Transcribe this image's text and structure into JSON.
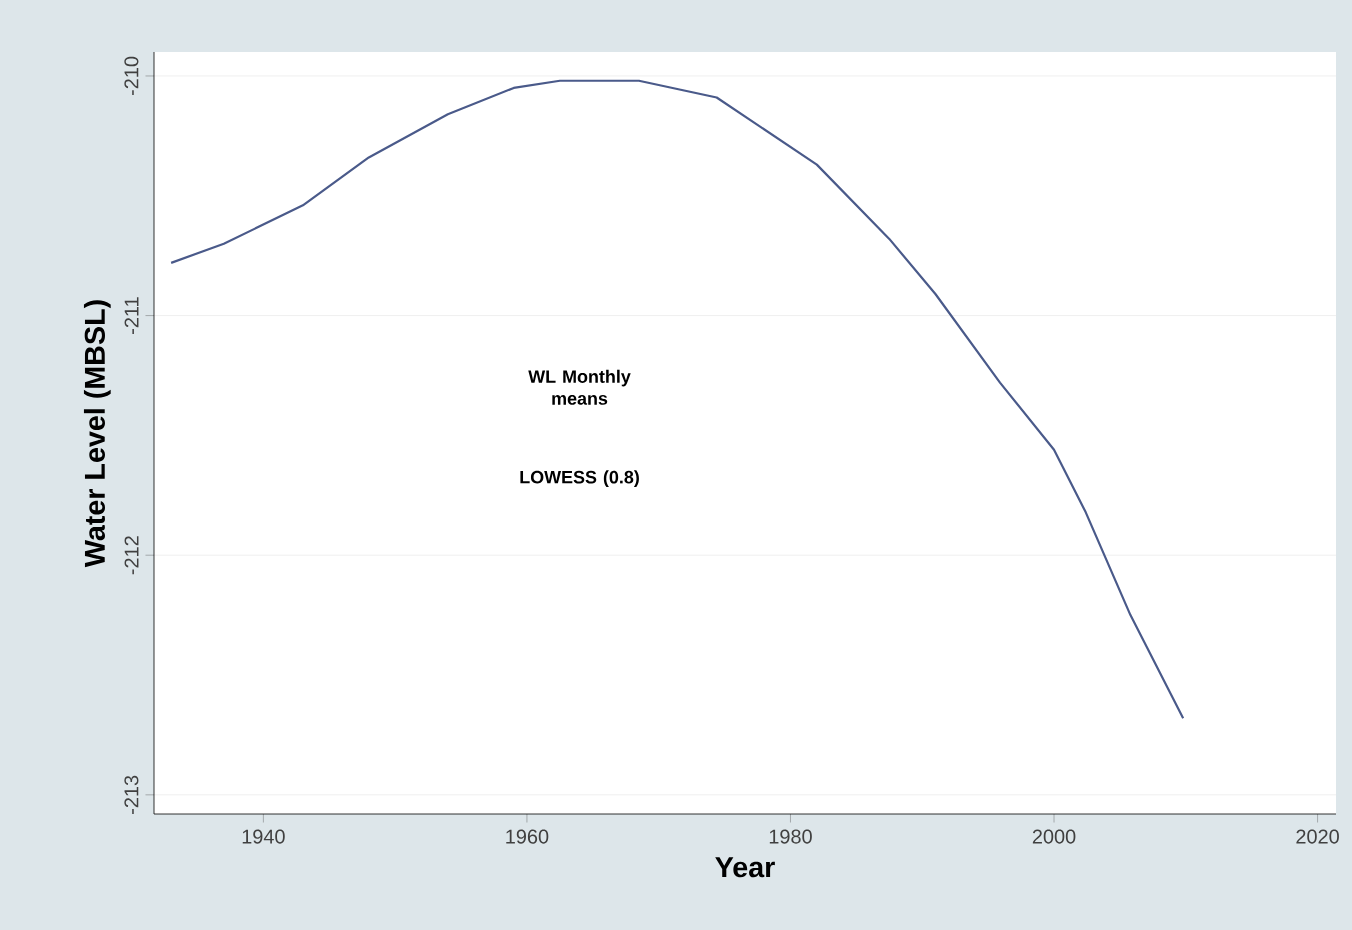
{
  "chart_data": {
    "type": "line",
    "xlabel": "Year",
    "ylabel": "Water Level (MBSL)",
    "x": [
      1933,
      1937,
      1943,
      1948,
      1954,
      1959,
      1962.5,
      1968.5,
      1974.4,
      1982,
      1987.5,
      1991,
      1995.9,
      2000,
      2002.4,
      2005.8,
      2009.8
    ],
    "series": [
      {
        "color": "#4a5a8a",
        "values": [
          -210.78,
          -210.7,
          -210.54,
          -210.34,
          -210.16,
          -210.05,
          -210.02,
          -210.02,
          -210.09,
          -210.37,
          -210.68,
          -210.91,
          -211.28,
          -211.56,
          -211.82,
          -212.25,
          -212.68
        ]
      }
    ],
    "xlim": [
      1931.7,
      2021.4
    ],
    "ylim": [
      -213.08,
      -209.9
    ],
    "xticks": [
      1940,
      1960,
      1980,
      2000,
      2020
    ],
    "yticks": [
      -213,
      -212,
      -211,
      -210
    ],
    "grid": "y",
    "annotations": [
      "WL Monthly means",
      "LOWESS (0.8)"
    ]
  }
}
